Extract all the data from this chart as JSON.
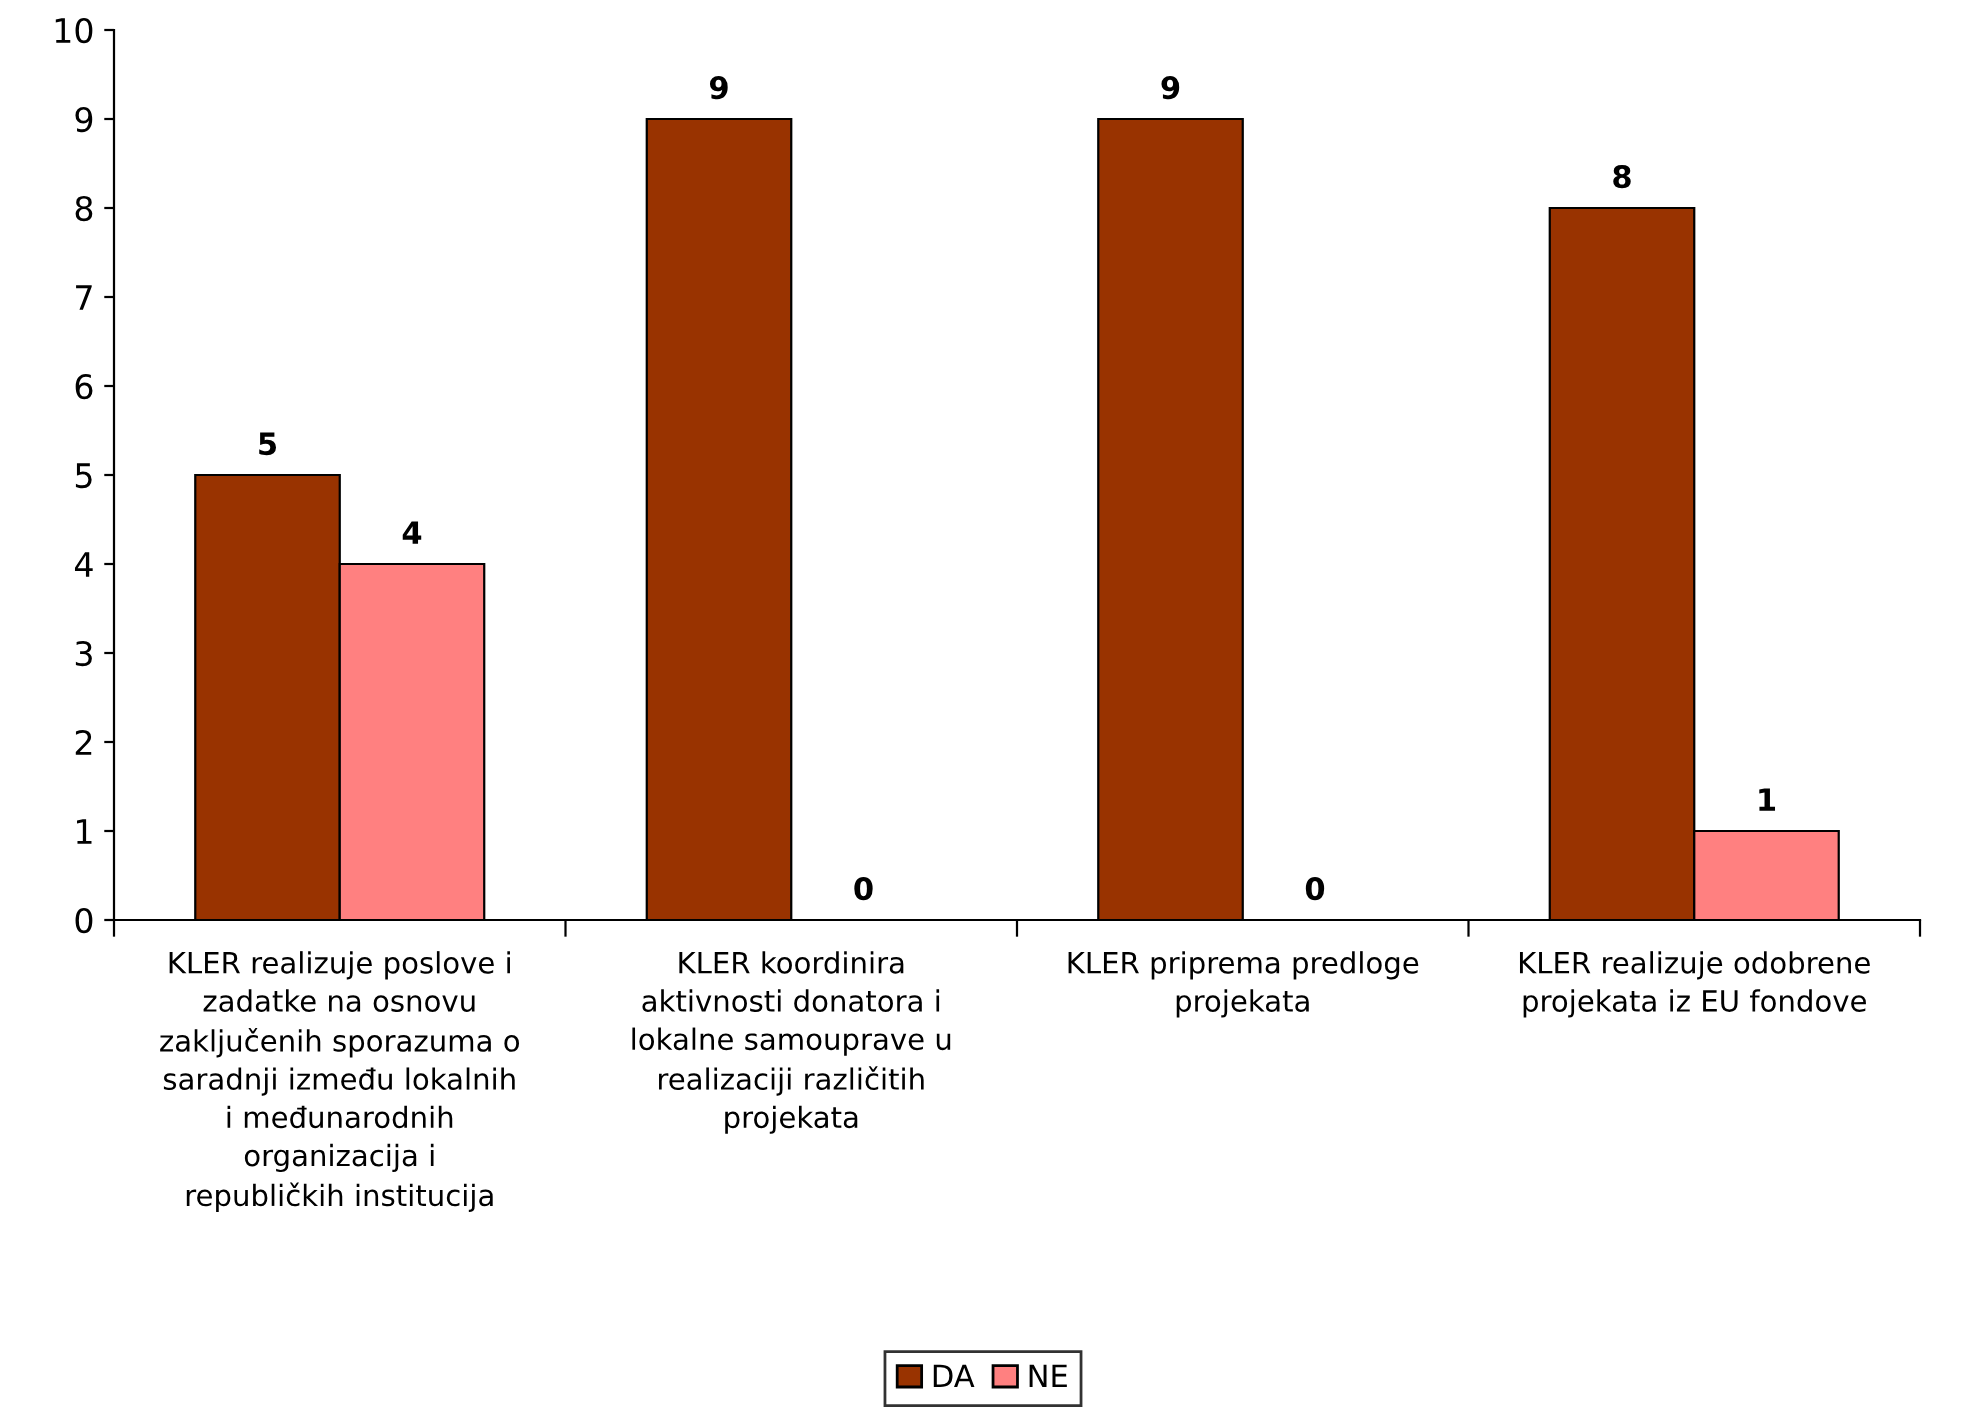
{
  "chart_data": {
    "type": "bar",
    "categories": [
      "KLER realizuje poslove i\nzadatke na osnovu\nzaključenih sporazuma o\nsaradnji između lokalnih\ni međunarodnih\norganizacija i\nrepubličkih institucija",
      "KLER koordinira\naktivnosti donatora i\nlokalne samouprave u\nrealizaciji različitih\nprojekata",
      "KLER priprema predloge\nprojekata",
      "KLER realizuje odobrene\nprojekata iz EU fondove"
    ],
    "series": [
      {
        "name": "DA",
        "color": "#993300",
        "values": [
          5,
          9,
          9,
          8
        ]
      },
      {
        "name": "NE",
        "color": "#ff8080",
        "values": [
          4,
          0,
          0,
          1
        ]
      }
    ],
    "ylim": [
      0,
      10
    ],
    "yticks": [
      0,
      1,
      2,
      3,
      4,
      5,
      6,
      7,
      8,
      9,
      10
    ],
    "grid": false,
    "legend": "bottom",
    "data_labels": true
  }
}
